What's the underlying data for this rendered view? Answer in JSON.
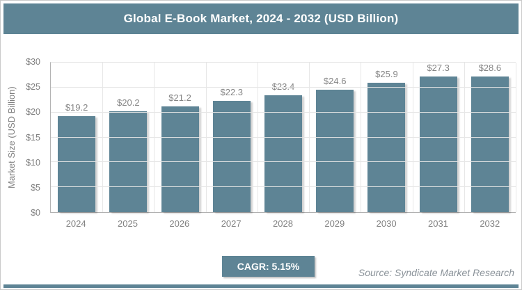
{
  "title": "Global E-Book Market, 2024 - 2032 (USD Billion)",
  "colors": {
    "accent": "#5e8495",
    "grid": "#e4e4e4",
    "axis": "#b3b3b3",
    "value_label": "#858585",
    "tick_label": "#7f7f7f",
    "source_text": "#8a9299",
    "title_text": "#ffffff"
  },
  "chart_data": {
    "type": "bar",
    "title": "Global E-Book Market, 2024 - 2032 (USD Billion)",
    "categories": [
      "2024",
      "2025",
      "2026",
      "2027",
      "2028",
      "2029",
      "2030",
      "2031",
      "2032"
    ],
    "values": [
      19.2,
      20.2,
      21.2,
      22.3,
      23.4,
      24.6,
      25.9,
      27.3,
      28.6
    ],
    "value_labels": [
      "$19.2",
      "$20.2",
      "$21.2",
      "$22.3",
      "$23.4",
      "$24.6",
      "$25.9",
      "$27.3",
      "$28.6"
    ],
    "xlabel": "",
    "ylabel": "Market Size (USD Billion)",
    "ylim": [
      0,
      30
    ],
    "ytick_step": 5,
    "ytick_labels": [
      "$0",
      "$5",
      "$10",
      "$15",
      "$20",
      "$25",
      "$30"
    ],
    "grid": "on",
    "legend": "none",
    "bar_color": "#5e8495"
  },
  "footer": {
    "cagr_label": "CAGR: 5.15%",
    "source": "Source: Syndicate Market Research"
  }
}
